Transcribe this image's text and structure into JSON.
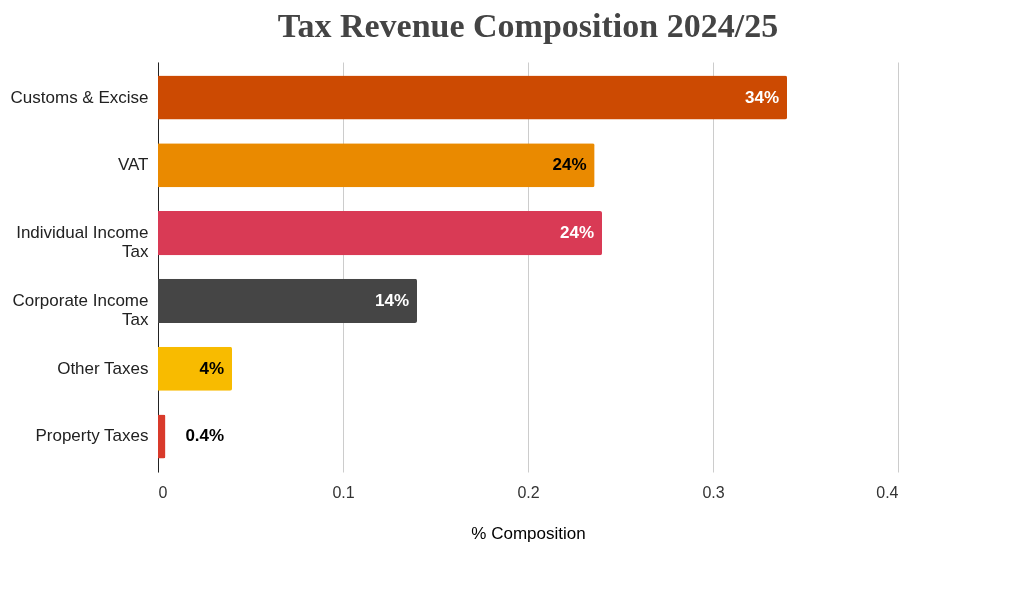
{
  "chart_data": {
    "type": "bar",
    "orientation": "horizontal",
    "title": "Tax Revenue Composition 2024/25",
    "xlabel": "% Composition",
    "categories": [
      "Customs & Excise",
      "VAT",
      "Individual Income Tax",
      "Corporate Income Tax",
      "Other Taxes",
      "Property Taxes"
    ],
    "values": [
      0.34,
      0.236,
      0.24,
      0.14,
      0.04,
      0.004
    ],
    "colors": [
      "#cc4a02",
      "#ea8a00",
      "#d93a55",
      "#454545",
      "#f8bb00",
      "#d93a2b"
    ],
    "value_labels": [
      "34%",
      "24%",
      "24%",
      "14%",
      "4%",
      "0.4%"
    ],
    "xlim": [
      0,
      0.4
    ],
    "xticks": [
      0,
      0.1,
      0.2,
      0.3,
      0.4
    ],
    "grid": "x"
  }
}
